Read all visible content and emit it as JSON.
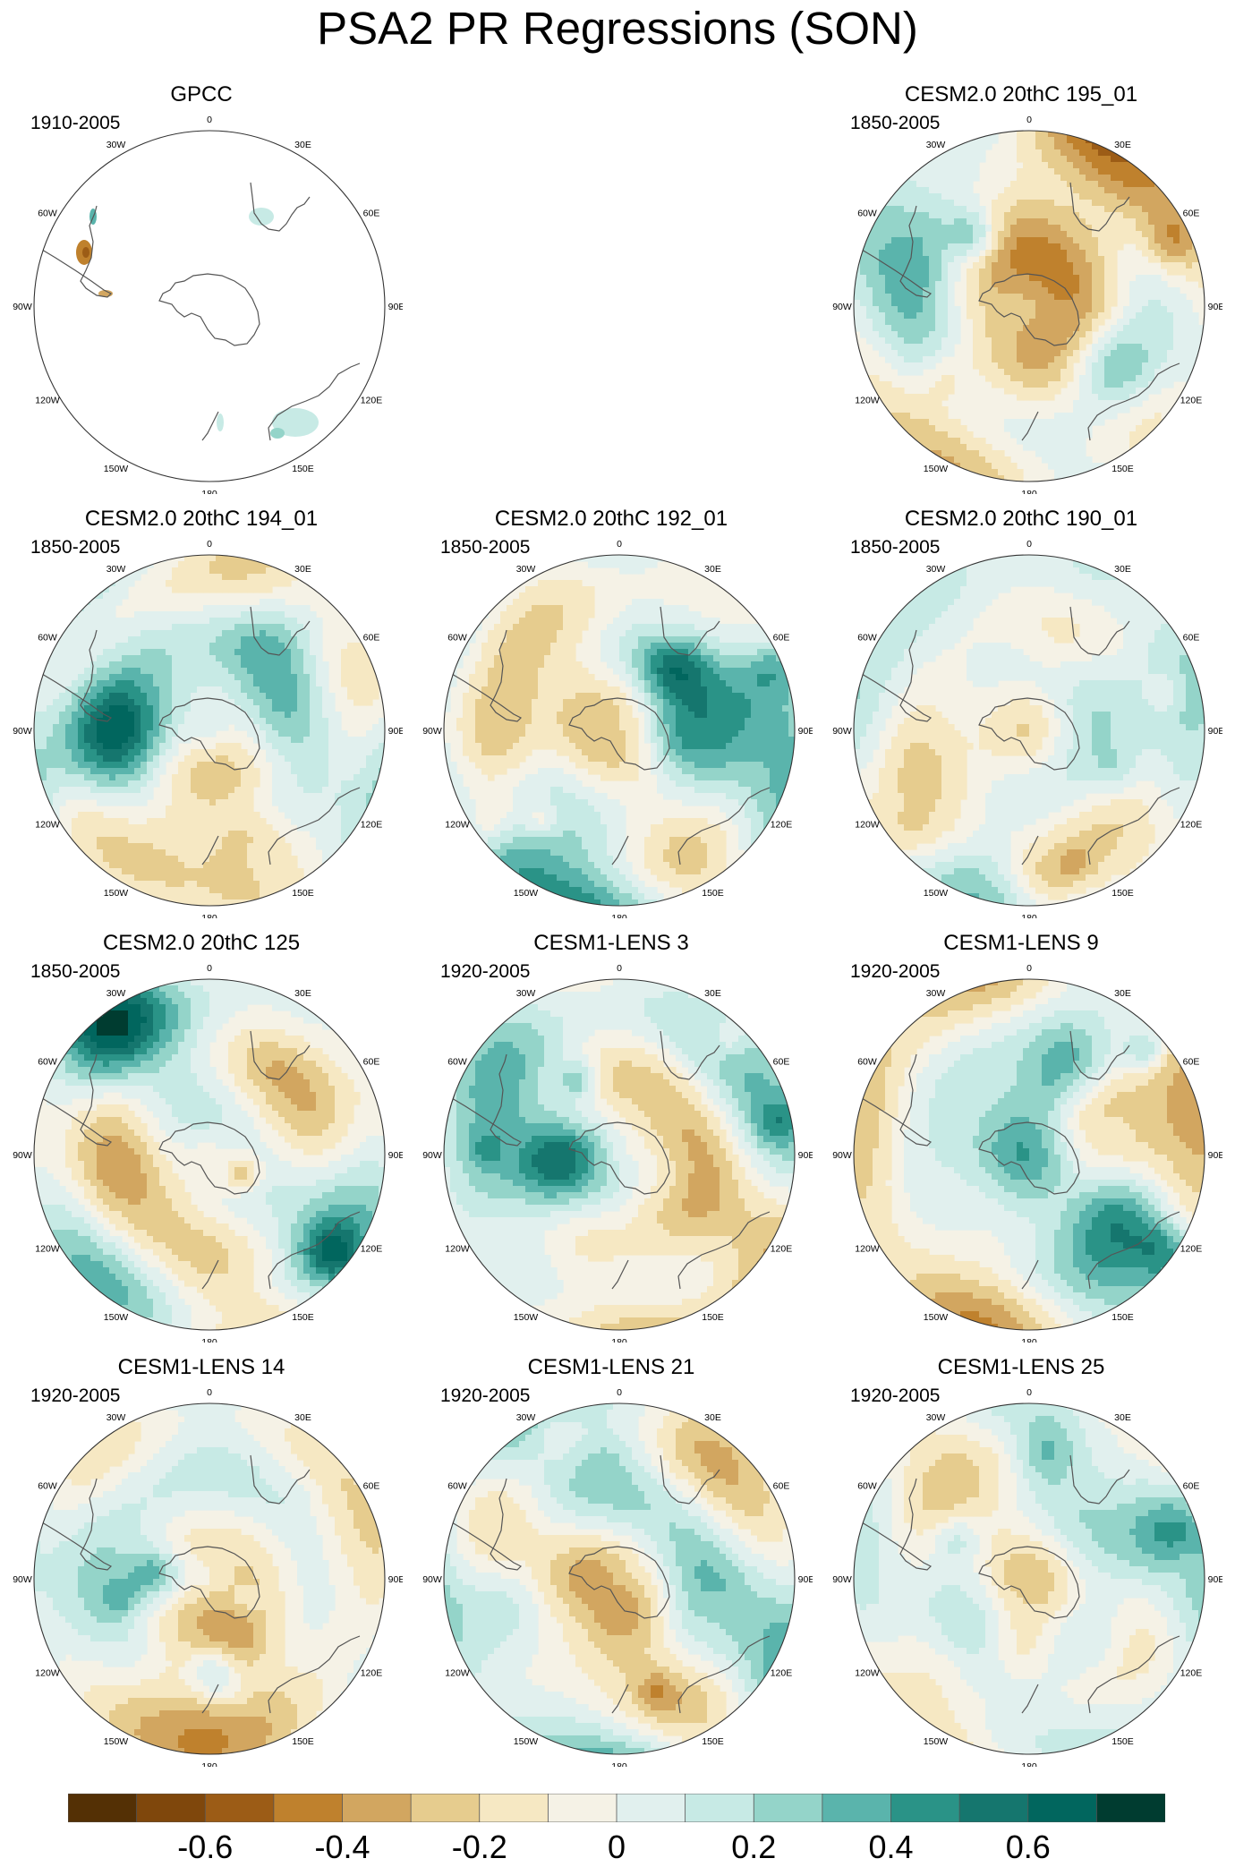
{
  "title": "PSA2 PR Regressions (SON)",
  "lon_labels": [
    "0",
    "30E",
    "60E",
    "90E",
    "120E",
    "150E",
    "180",
    "150W",
    "120W",
    "90W",
    "60W",
    "30W"
  ],
  "panels": [
    {
      "title": "GPCC",
      "years": "1910-2005",
      "field": "obs",
      "seed": 1
    },
    {
      "title": "",
      "years": "",
      "field": "empty",
      "seed": 0
    },
    {
      "title": "CESM2.0 20thC 195_01",
      "years": "1850-2005",
      "field": "model",
      "seed": 2
    },
    {
      "title": "CESM2.0 20thC 194_01",
      "years": "1850-2005",
      "field": "model",
      "seed": 3
    },
    {
      "title": "CESM2.0 20thC 192_01",
      "years": "1850-2005",
      "field": "model",
      "seed": 4
    },
    {
      "title": "CESM2.0 20thC 190_01",
      "years": "1850-2005",
      "field": "model",
      "seed": 5
    },
    {
      "title": "CESM2.0 20thC 125",
      "years": "1850-2005",
      "field": "model",
      "seed": 6
    },
    {
      "title": "CESM1-LENS 3",
      "years": "1920-2005",
      "field": "model",
      "seed": 7
    },
    {
      "title": "CESM1-LENS 9",
      "years": "1920-2005",
      "field": "model",
      "seed": 8
    },
    {
      "title": "CESM1-LENS 14",
      "years": "1920-2005",
      "field": "model",
      "seed": 9
    },
    {
      "title": "CESM1-LENS 21",
      "years": "1920-2005",
      "field": "model",
      "seed": 10
    },
    {
      "title": "CESM1-LENS 25",
      "years": "1920-2005",
      "field": "model",
      "seed": 11
    }
  ],
  "colorbar": {
    "colors": [
      "#543005",
      "#7f470c",
      "#9c5c16",
      "#bf812d",
      "#d2a660",
      "#e6cc8e",
      "#f6e8c3",
      "#f5f2e6",
      "#e1f0ee",
      "#c7eae5",
      "#94d4c9",
      "#5ab4ac",
      "#2a9387",
      "#15766e",
      "#01665e",
      "#003c30"
    ],
    "tick_labels": [
      "-0.6",
      "-0.4",
      "-0.2",
      "0",
      "0.2",
      "0.4",
      "0.6"
    ],
    "tick_values": [
      -0.6,
      -0.4,
      -0.2,
      0,
      0.2,
      0.4,
      0.6
    ],
    "min": -0.8,
    "max": 0.8
  }
}
